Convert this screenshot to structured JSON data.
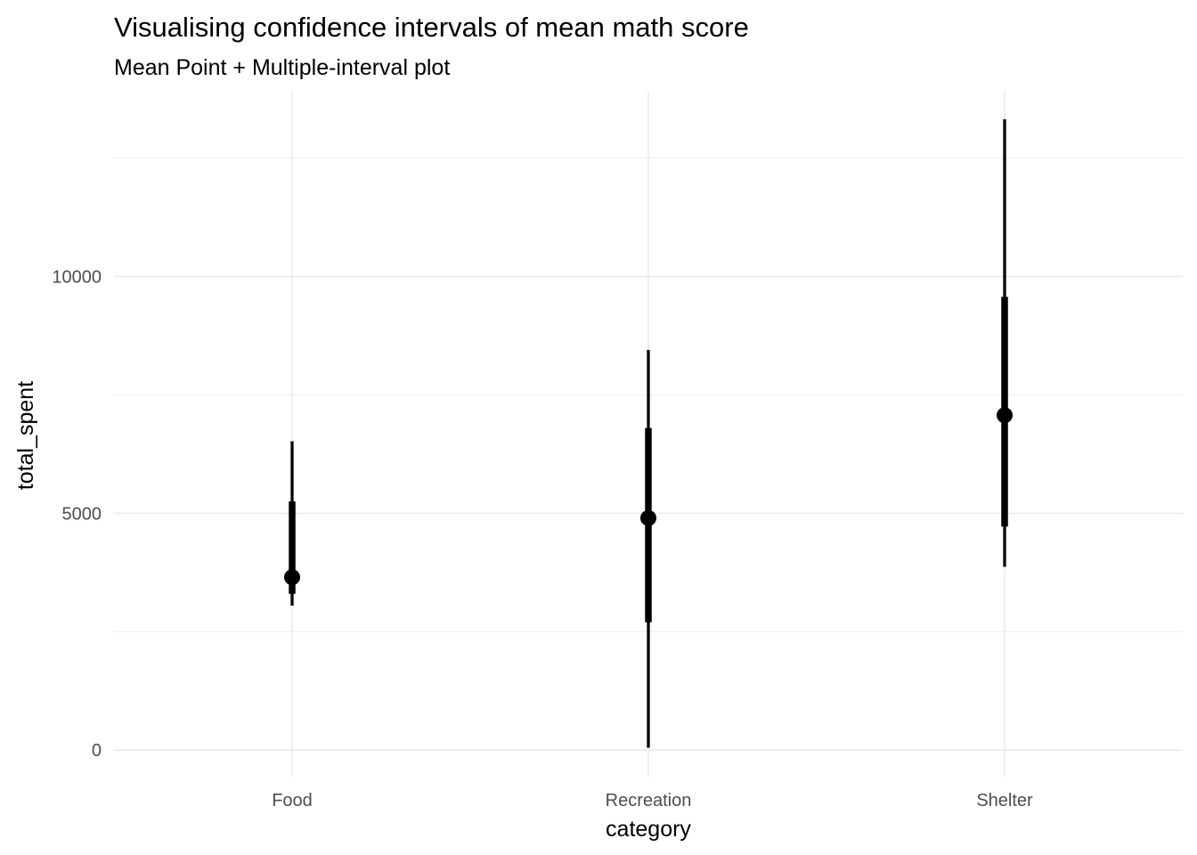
{
  "chart_data": {
    "type": "pointinterval",
    "title": "Visualising confidence intervals of mean math score",
    "subtitle": "Mean Point + Multiple-interval plot",
    "xlabel": "category",
    "ylabel": "total_spent",
    "categories": [
      "Food",
      "Recreation",
      "Shelter"
    ],
    "ylim": [
      -560,
      13900
    ],
    "yticks": [
      0,
      5000,
      10000
    ],
    "ytick_labels": [
      "0",
      "5000",
      "10000"
    ],
    "grid": true,
    "legend": "none",
    "mark_color": "#000000",
    "series": [
      {
        "category": "Food",
        "mean": 3650,
        "inner": [
          3300,
          5250
        ],
        "outer": [
          3050,
          6520
        ]
      },
      {
        "category": "Recreation",
        "mean": 4900,
        "inner": [
          2700,
          6800
        ],
        "outer": [
          50,
          8450
        ]
      },
      {
        "category": "Shelter",
        "mean": 7070,
        "inner": [
          4720,
          9570
        ],
        "outer": [
          3870,
          13320
        ]
      }
    ]
  }
}
